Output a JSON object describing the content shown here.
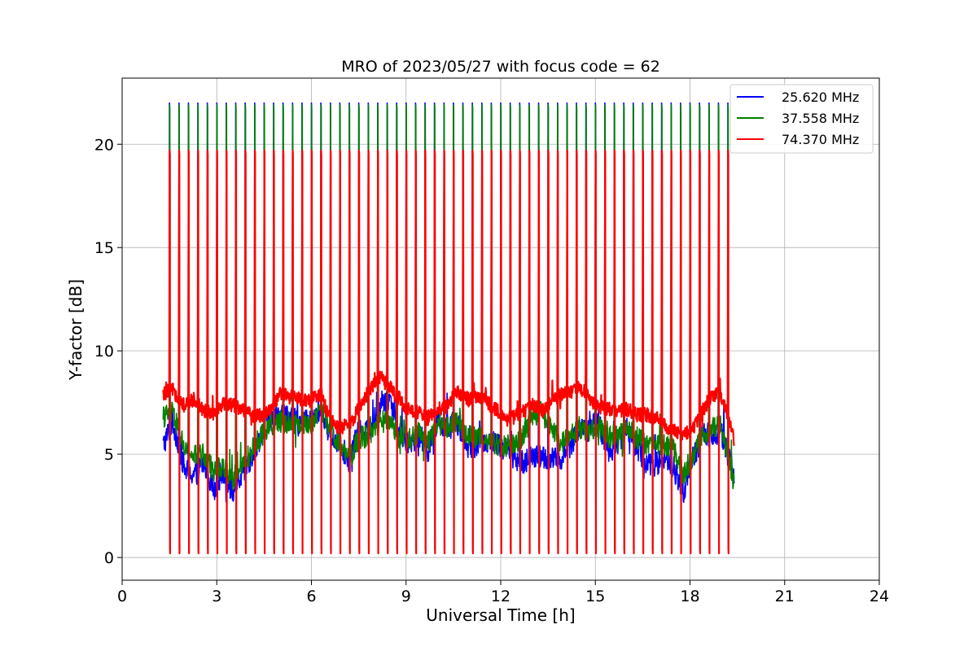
{
  "chart_data": {
    "type": "line",
    "title": "MRO of 2023/05/27 with focus code = 62",
    "xlabel": "Universal Time [h]",
    "ylabel": "Y-factor [dB]",
    "xlim": [
      0,
      24
    ],
    "ylim": [
      -1.1,
      23.2
    ],
    "xticks": [
      0,
      3,
      6,
      9,
      12,
      15,
      18,
      21,
      24
    ],
    "yticks": [
      0,
      5,
      10,
      15,
      20
    ],
    "xtick_labels": [
      "0",
      "3",
      "6",
      "9",
      "12",
      "15",
      "18",
      "21",
      "24"
    ],
    "ytick_labels": [
      "0",
      "5",
      "10",
      "15",
      "20"
    ],
    "grid": true,
    "legend_position": "top-right",
    "x_start": 1.3,
    "x_end": 19.4,
    "calibration_spike_times": [
      1.5,
      1.8,
      2.1,
      2.4,
      2.7,
      3.0,
      3.3,
      3.6,
      3.9,
      4.2,
      4.5,
      4.8,
      5.1,
      5.4,
      5.7,
      6.0,
      6.3,
      6.6,
      6.9,
      7.2,
      7.5,
      7.8,
      8.1,
      8.4,
      8.7,
      9.0,
      9.3,
      9.6,
      9.9,
      10.2,
      10.5,
      10.8,
      11.1,
      11.4,
      11.7,
      12.0,
      12.3,
      12.6,
      12.9,
      13.2,
      13.5,
      13.8,
      14.1,
      14.4,
      14.7,
      15.0,
      15.3,
      15.6,
      15.9,
      16.2,
      16.5,
      16.8,
      17.1,
      17.4,
      17.7,
      18.0,
      18.3,
      18.6,
      18.9,
      19.2
    ],
    "series": [
      {
        "name": "25.620 MHz",
        "color": "#0000ff",
        "spike_peak": 22.0,
        "spike_trough": 0.4,
        "baseline": {
          "x": [
            1.3,
            1.6,
            2.0,
            2.3,
            2.6,
            2.9,
            3.2,
            3.5,
            3.8,
            4.2,
            4.6,
            5.0,
            5.5,
            6.0,
            6.3,
            6.6,
            6.9,
            7.2,
            7.5,
            7.9,
            8.2,
            8.5,
            8.8,
            9.1,
            9.4,
            9.7,
            10.0,
            10.3,
            10.6,
            11.0,
            11.4,
            11.8,
            12.2,
            12.6,
            13.0,
            13.3,
            13.6,
            13.9,
            14.2,
            14.5,
            14.8,
            15.1,
            15.4,
            15.7,
            16.0,
            16.3,
            16.6,
            16.9,
            17.2,
            17.5,
            17.8,
            18.1,
            18.4,
            18.7,
            19.0,
            19.4
          ],
          "y": [
            5.4,
            6.6,
            4.2,
            4.0,
            4.6,
            3.3,
            4.2,
            3.2,
            3.9,
            5.2,
            6.6,
            7.0,
            6.6,
            6.5,
            7.3,
            5.9,
            5.5,
            4.7,
            6.1,
            6.3,
            7.5,
            7.7,
            6.1,
            5.4,
            6.0,
            5.2,
            6.6,
            6.2,
            6.6,
            5.3,
            5.6,
            5.6,
            5.2,
            4.6,
            4.8,
            4.9,
            4.7,
            4.8,
            5.4,
            6.3,
            6.2,
            6.6,
            5.1,
            5.5,
            6.4,
            5.3,
            4.6,
            4.5,
            4.8,
            4.2,
            3.2,
            4.8,
            5.9,
            6.0,
            6.0,
            4.0
          ]
        },
        "noise": 0.6
      },
      {
        "name": "37.558 MHz",
        "color": "#008000",
        "spike_peak": 21.9,
        "spike_trough": 0.3,
        "baseline": {
          "x": [
            1.3,
            1.6,
            2.0,
            2.3,
            2.6,
            2.9,
            3.2,
            3.5,
            3.8,
            4.2,
            4.6,
            5.0,
            5.5,
            6.0,
            6.3,
            6.6,
            6.9,
            7.2,
            7.5,
            7.9,
            8.2,
            8.5,
            8.8,
            9.1,
            9.4,
            9.7,
            10.0,
            10.3,
            10.6,
            11.0,
            11.4,
            11.8,
            12.2,
            12.6,
            13.0,
            13.3,
            13.6,
            13.9,
            14.2,
            14.5,
            14.8,
            15.1,
            15.4,
            15.7,
            16.0,
            16.3,
            16.6,
            16.9,
            17.2,
            17.5,
            17.8,
            18.1,
            18.4,
            18.7,
            19.0,
            19.4
          ],
          "y": [
            6.8,
            7.0,
            5.2,
            4.9,
            5.0,
            4.2,
            4.4,
            3.8,
            4.4,
            5.4,
            6.3,
            6.6,
            6.5,
            6.5,
            7.3,
            6.2,
            5.4,
            4.7,
            5.8,
            5.9,
            6.6,
            6.4,
            5.8,
            5.7,
            6.0,
            5.6,
            6.5,
            6.3,
            6.6,
            5.8,
            5.9,
            5.5,
            5.4,
            5.6,
            6.8,
            7.1,
            6.1,
            5.6,
            5.8,
            6.3,
            6.1,
            6.4,
            5.8,
            5.9,
            6.2,
            5.8,
            5.5,
            5.5,
            5.4,
            5.2,
            4.0,
            5.0,
            5.9,
            6.2,
            6.4,
            3.5
          ]
        },
        "noise": 0.55
      },
      {
        "name": "74.370 MHz",
        "color": "#ff0000",
        "spike_peak": 19.7,
        "spike_trough": 0.2,
        "baseline": {
          "x": [
            1.3,
            1.6,
            2.0,
            2.3,
            2.6,
            2.9,
            3.2,
            3.5,
            3.8,
            4.2,
            4.6,
            5.0,
            5.5,
            6.0,
            6.3,
            6.6,
            6.9,
            7.2,
            7.5,
            7.9,
            8.2,
            8.5,
            8.8,
            9.1,
            9.4,
            9.7,
            10.0,
            10.3,
            10.6,
            11.0,
            11.4,
            11.8,
            12.2,
            12.6,
            13.0,
            13.3,
            13.6,
            13.9,
            14.2,
            14.5,
            14.8,
            15.1,
            15.4,
            15.7,
            16.0,
            16.3,
            16.6,
            16.9,
            17.2,
            17.5,
            17.8,
            18.1,
            18.4,
            18.7,
            19.0,
            19.4
          ],
          "y": [
            7.9,
            8.1,
            7.3,
            7.7,
            7.1,
            7.0,
            7.5,
            7.4,
            7.2,
            6.8,
            7.0,
            7.9,
            7.7,
            7.6,
            7.9,
            6.7,
            6.2,
            6.4,
            7.2,
            8.3,
            8.7,
            8.2,
            7.6,
            7.1,
            7.0,
            6.7,
            7.2,
            7.3,
            8.1,
            7.6,
            7.8,
            7.2,
            6.7,
            6.9,
            7.4,
            7.1,
            7.6,
            7.9,
            8.0,
            8.3,
            7.7,
            7.3,
            7.2,
            7.0,
            7.2,
            6.9,
            6.9,
            6.8,
            6.4,
            6.1,
            5.9,
            6.3,
            7.1,
            7.9,
            7.8,
            5.7
          ]
        },
        "noise": 0.35
      }
    ]
  }
}
